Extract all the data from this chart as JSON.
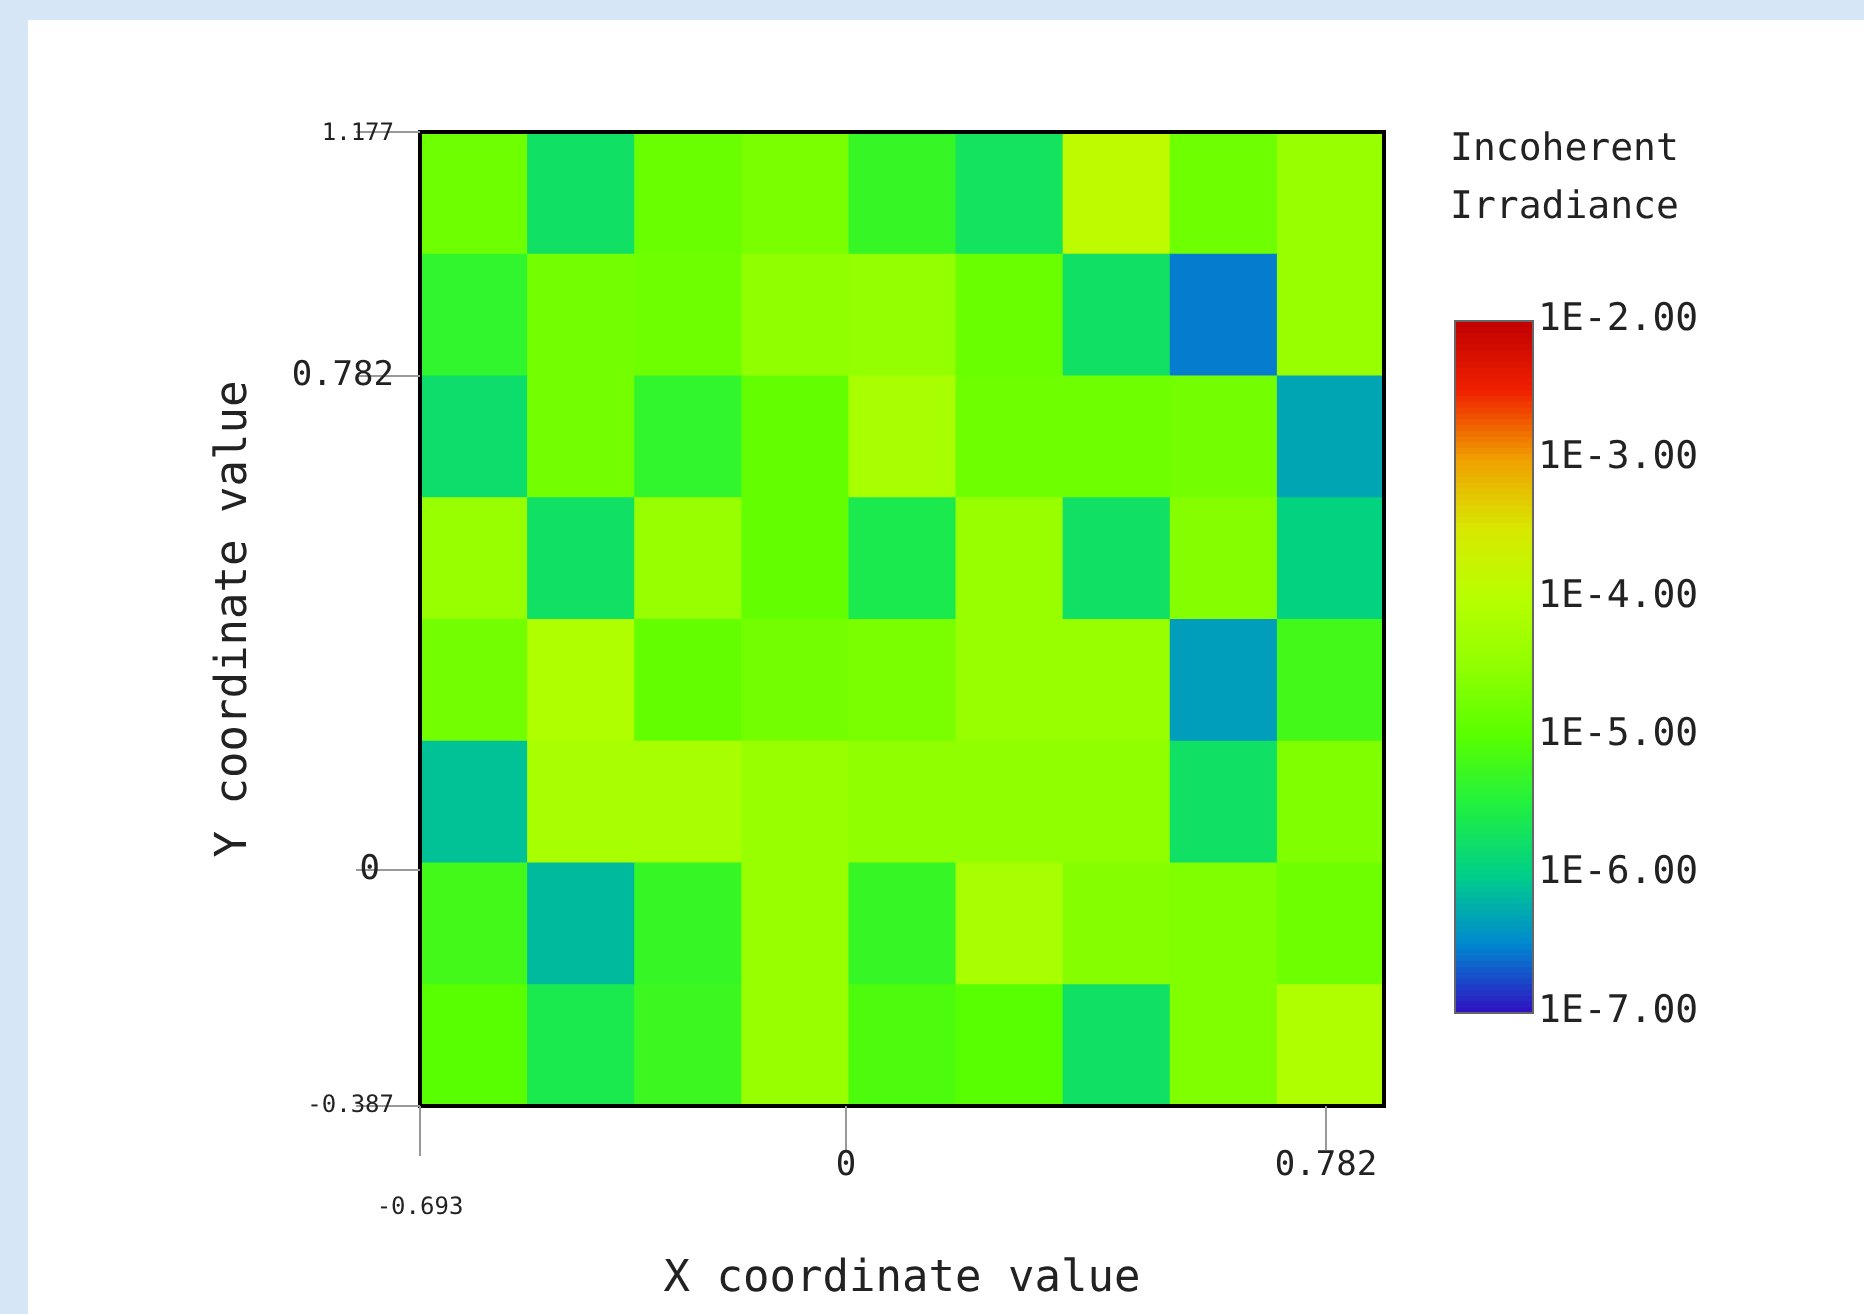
{
  "chart_data": {
    "type": "heatmap",
    "xlabel": "X coordinate value",
    "ylabel": "Y coordinate value",
    "clabel": "Incoherent Irradiance",
    "categories": [
      null,
      null,
      null,
      null,
      null,
      null,
      null,
      null,
      null
    ],
    "y_categories": [
      null,
      null,
      null,
      null,
      null,
      null,
      null,
      null
    ],
    "annotations": [
      "1.177",
      "0.782",
      "0",
      "-0.387",
      "-0.693",
      "0",
      "0.782"
    ],
    "clim": [
      -7,
      -2
    ],
    "cticks": [
      {
        "value": -2,
        "label": "1E-2.00"
      },
      {
        "value": -3,
        "label": "1E-3.00"
      },
      {
        "value": -4,
        "label": "1E-4.00"
      },
      {
        "value": -5,
        "label": "1E-5.00"
      },
      {
        "value": -6,
        "label": "1E-6.00"
      },
      {
        "value": -7,
        "label": "1E-7.00"
      }
    ],
    "cells": [
      [
        -4.8,
        -5.75,
        -4.85,
        -4.7,
        -5.3,
        -5.7,
        -3.9,
        -4.8,
        -4.4
      ],
      [
        -5.35,
        -4.75,
        -4.8,
        -4.5,
        -4.45,
        -4.85,
        -5.75,
        -6.55,
        -4.4
      ],
      [
        -5.8,
        -4.75,
        -5.35,
        -4.9,
        -4.2,
        -4.8,
        -4.8,
        -4.75,
        -6.3
      ],
      [
        -4.4,
        -5.75,
        -4.4,
        -4.9,
        -5.6,
        -4.4,
        -5.75,
        -4.6,
        -5.95
      ],
      [
        -4.75,
        -4.1,
        -4.9,
        -4.75,
        -4.7,
        -4.4,
        -4.4,
        -6.35,
        -5.2
      ],
      [
        -6.1,
        -4.2,
        -4.2,
        -4.4,
        -4.5,
        -4.5,
        -4.5,
        -5.75,
        -4.65
      ],
      [
        -5.2,
        -6.15,
        -5.3,
        -4.4,
        -5.3,
        -4.2,
        -4.6,
        -4.65,
        -4.8
      ],
      [
        -5.0,
        -5.6,
        -5.25,
        -4.4,
        -5.1,
        -5.0,
        -5.75,
        -4.65,
        -4.1
      ]
    ]
  }
}
